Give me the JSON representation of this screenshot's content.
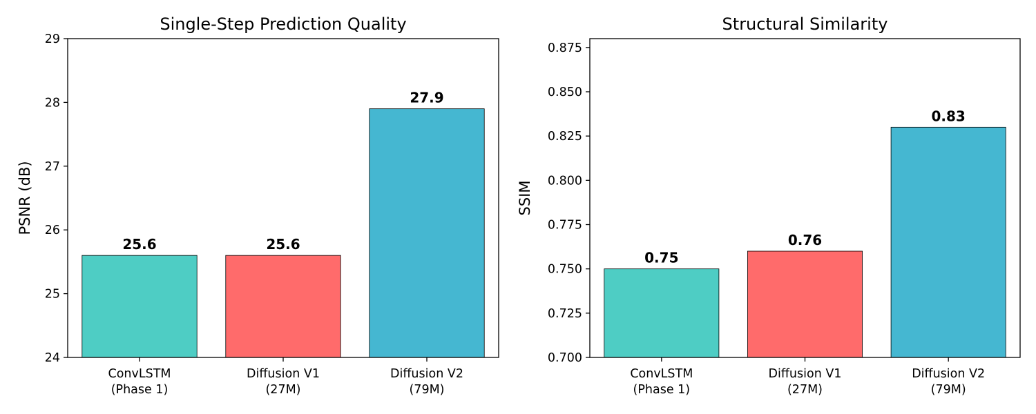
{
  "chart_data": [
    {
      "type": "bar",
      "title": "Single-Step Prediction Quality",
      "xlabel": "",
      "ylabel": "PSNR (dB)",
      "categories": [
        [
          "ConvLSTM",
          "(Phase 1)"
        ],
        [
          "Diffusion V1",
          "(27M)"
        ],
        [
          "Diffusion V2",
          "(79M)"
        ]
      ],
      "values": [
        25.6,
        25.6,
        27.9
      ],
      "value_labels": [
        "25.6",
        "25.6",
        "27.9"
      ],
      "colors": [
        "#4ECDC4",
        "#FF6B6B",
        "#45B7D1"
      ],
      "ylim": [
        24,
        29
      ],
      "yticks": [
        24,
        25,
        26,
        27,
        28,
        29
      ],
      "ytick_labels": [
        "24",
        "25",
        "26",
        "27",
        "28",
        "29"
      ],
      "grid": false,
      "legend": "none"
    },
    {
      "type": "bar",
      "title": "Structural Similarity",
      "xlabel": "",
      "ylabel": "SSIM",
      "categories": [
        [
          "ConvLSTM",
          "(Phase 1)"
        ],
        [
          "Diffusion V1",
          "(27M)"
        ],
        [
          "Diffusion V2",
          "(79M)"
        ]
      ],
      "values": [
        0.75,
        0.76,
        0.83
      ],
      "value_labels": [
        "0.75",
        "0.76",
        "0.83"
      ],
      "colors": [
        "#4ECDC4",
        "#FF6B6B",
        "#45B7D1"
      ],
      "ylim": [
        0.7,
        0.88
      ],
      "yticks": [
        0.7,
        0.725,
        0.75,
        0.775,
        0.8,
        0.825,
        0.85,
        0.875
      ],
      "ytick_labels": [
        "0.700",
        "0.725",
        "0.750",
        "0.775",
        "0.800",
        "0.825",
        "0.850",
        "0.875"
      ],
      "grid": false,
      "legend": "none"
    }
  ]
}
